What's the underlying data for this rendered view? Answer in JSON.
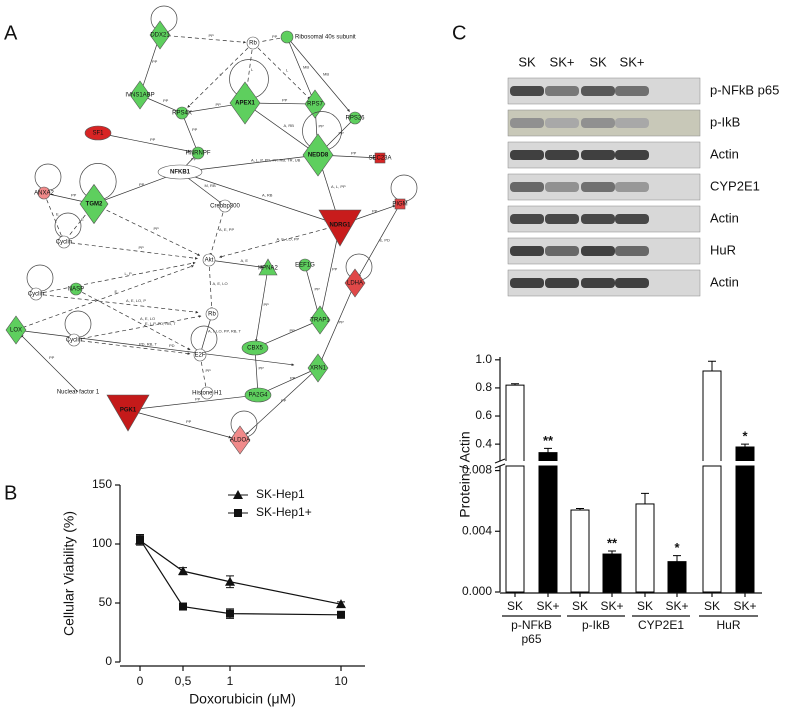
{
  "panels": [
    "A",
    "B",
    "C"
  ],
  "network": {
    "nodes": [
      {
        "label": "DDX21",
        "shape": "diamond",
        "color": "#5ecf5e",
        "self_loop": true
      },
      {
        "label": "Rb",
        "shape": "circle",
        "color": "#ffffff"
      },
      {
        "label": "Ribosomal 40s subunit",
        "shape": "circle",
        "color": "#5ecf5e"
      },
      {
        "label": "IVNS1ABP",
        "shape": "diamond",
        "color": "#5ecf5e"
      },
      {
        "label": "RPS4X",
        "shape": "circle",
        "color": "#5ecf5e"
      },
      {
        "label": "APEX1",
        "shape": "diamond",
        "color": "#5ecf5e",
        "self_loop": true
      },
      {
        "label": "RPS7",
        "shape": "diamond",
        "color": "#5ecf5e"
      },
      {
        "label": "RPS26",
        "shape": "circle",
        "color": "#5ecf5e"
      },
      {
        "label": "SF1",
        "shape": "ellipse",
        "color": "#d82424"
      },
      {
        "label": "HNRNPF",
        "shape": "circle",
        "color": "#5ecf5e"
      },
      {
        "label": "NEDD8",
        "shape": "diamond",
        "color": "#5ecf5e",
        "self_loop": true
      },
      {
        "label": "SEC23A",
        "shape": "square",
        "color": "#d82424"
      },
      {
        "label": "ANXA2",
        "shape": "circle",
        "color": "#f08a8a",
        "self_loop": true
      },
      {
        "label": "TGM2",
        "shape": "diamond",
        "color": "#5ecf5e",
        "self_loop": true
      },
      {
        "label": "NFKB1",
        "shape": "ellipse",
        "color": "#ffffff"
      },
      {
        "label": "Crebbp300",
        "shape": "circle",
        "color": "#ffffff"
      },
      {
        "label": "NDRG1",
        "shape": "tridown",
        "color": "#c81c1c"
      },
      {
        "label": "PIGM",
        "shape": "square",
        "color": "#e04040",
        "self_loop": true
      },
      {
        "label": "Cyclin",
        "shape": "circle",
        "color": "#ffffff",
        "self_loop": true
      },
      {
        "label": "Akt",
        "shape": "circle",
        "color": "#ffffff"
      },
      {
        "label": "KPNA2",
        "shape": "triangle",
        "color": "#5ecf5e"
      },
      {
        "label": "EEF1G",
        "shape": "circle",
        "color": "#5ecf5e"
      },
      {
        "label": "LDHA",
        "shape": "diamond",
        "color": "#e04848",
        "self_loop": true
      },
      {
        "label": "Cyclin",
        "shape": "circle",
        "color": "#ffffff",
        "self_loop": true
      },
      {
        "label": "NASP",
        "shape": "circle",
        "color": "#5ecf5e"
      },
      {
        "label": "Rb",
        "shape": "circle",
        "color": "#ffffff"
      },
      {
        "label": "TRAP1",
        "shape": "diamond",
        "color": "#5ecf5e"
      },
      {
        "label": "LOX",
        "shape": "diamond",
        "color": "#5ecf5e"
      },
      {
        "label": "Cyclin",
        "shape": "circle",
        "color": "#ffffff",
        "self_loop": true
      },
      {
        "label": "E2F",
        "shape": "circle",
        "color": "#ffffff",
        "self_loop": true
      },
      {
        "label": "CBX5",
        "shape": "ellipse",
        "color": "#5ecf5e"
      },
      {
        "label": "XRN1",
        "shape": "diamond",
        "color": "#5ecf5e"
      },
      {
        "label": "Nuclear factor 1",
        "shape": "text",
        "color": "#ffffff"
      },
      {
        "label": "Histone H1",
        "shape": "circle",
        "color": "#ffffff"
      },
      {
        "label": "PA2G4",
        "shape": "ellipse",
        "color": "#5ecf5e"
      },
      {
        "label": "PGK1",
        "shape": "tridown",
        "color": "#c41a1a"
      },
      {
        "label": "ALDOA",
        "shape": "diamond",
        "color": "#f08a8a",
        "self_loop": true
      }
    ],
    "edges": [
      {
        "from": 0,
        "to": 1,
        "label": "PP",
        "dashed": true
      },
      {
        "from": 0,
        "to": 3,
        "label": "PP"
      },
      {
        "from": 2,
        "to": 1,
        "label": "PP",
        "dashed": true
      },
      {
        "from": 2,
        "to": 6,
        "label": "MB"
      },
      {
        "from": 2,
        "to": 7,
        "label": "MB"
      },
      {
        "from": 1,
        "to": 4,
        "label": "L",
        "dashed": true
      },
      {
        "from": 1,
        "to": 5,
        "label": "L",
        "dashed": true
      },
      {
        "from": 1,
        "to": 6,
        "label": "L",
        "dashed": true
      },
      {
        "from": 3,
        "to": 4,
        "label": "PP"
      },
      {
        "from": 4,
        "to": 5,
        "label": "PP"
      },
      {
        "from": 4,
        "to": 9,
        "label": "PP"
      },
      {
        "from": 5,
        "to": 6,
        "label": "PP"
      },
      {
        "from": 5,
        "to": 10,
        "label": "A, RB"
      },
      {
        "from": 6,
        "to": 10,
        "label": "PP"
      },
      {
        "from": 7,
        "to": 10,
        "label": "PP"
      },
      {
        "from": 8,
        "to": 9,
        "label": "PP"
      },
      {
        "from": 10,
        "to": 11,
        "label": "PP"
      },
      {
        "from": 10,
        "to": 16,
        "label": "A, L, PP"
      },
      {
        "from": 14,
        "to": 9,
        "label": "PP"
      },
      {
        "from": 14,
        "to": 10,
        "label": "A, L, P, PD, PP, RB, TR, UB"
      },
      {
        "from": 14,
        "to": 16,
        "label": "A, RB"
      },
      {
        "from": 14,
        "to": 15,
        "label": "M, RB"
      },
      {
        "from": 13,
        "to": 14,
        "label": "PP"
      },
      {
        "from": 12,
        "to": 13,
        "label": "PP"
      },
      {
        "from": 12,
        "to": 18,
        "label": "E",
        "dashed": true
      },
      {
        "from": 13,
        "to": 18,
        "label": "E",
        "dashed": true
      },
      {
        "from": 13,
        "to": 19,
        "label": "PP",
        "dashed": true
      },
      {
        "from": 18,
        "to": 19,
        "label": "PP",
        "dashed": true
      },
      {
        "from": 15,
        "to": 19,
        "label": "A, E, PP",
        "dashed": true
      },
      {
        "from": 16,
        "to": 19,
        "label": "A, E, LO, PP",
        "dashed": true
      },
      {
        "from": 16,
        "to": 17,
        "label": "PP"
      },
      {
        "from": 17,
        "to": 22,
        "label": "E, PD"
      },
      {
        "from": 19,
        "to": 20,
        "label": "A, E"
      },
      {
        "from": 19,
        "to": 25,
        "label": "A, E, LO",
        "dashed": true
      },
      {
        "from": 20,
        "to": 30,
        "label": "PP"
      },
      {
        "from": 21,
        "to": 26,
        "label": "PP"
      },
      {
        "from": 16,
        "to": 26,
        "label": "PP"
      },
      {
        "from": 23,
        "to": 19,
        "label": "L, P",
        "dashed": true
      },
      {
        "from": 23,
        "to": 25,
        "label": "A, E, LO, P",
        "dashed": true
      },
      {
        "from": 27,
        "to": 19,
        "label": "E",
        "dashed": true
      },
      {
        "from": 28,
        "to": 25,
        "label": "E, I, P, PD, RB, T",
        "dashed": true
      },
      {
        "from": 28,
        "to": 29,
        "label": "PD, RB, T",
        "dashed": true
      },
      {
        "from": 24,
        "to": 29,
        "label": "A, E, LO",
        "dashed": true
      },
      {
        "from": 25,
        "to": 29,
        "label": "A, I, LO, PP, RB, T"
      },
      {
        "from": 26,
        "to": 30,
        "label": "PP"
      },
      {
        "from": 29,
        "to": 33,
        "label": "PP",
        "dashed": true
      },
      {
        "from": 30,
        "to": 34,
        "label": "PP"
      },
      {
        "from": 31,
        "to": 36,
        "label": "PP"
      },
      {
        "from": 31,
        "to": 34,
        "label": "PP"
      },
      {
        "from": 35,
        "to": 34,
        "label": "PP"
      },
      {
        "from": 35,
        "to": 36,
        "label": "PP"
      },
      {
        "from": 27,
        "to": 31,
        "label": "PD"
      },
      {
        "from": 32,
        "to": 27,
        "label": "PP"
      },
      {
        "from": 22,
        "to": 31,
        "label": "PP"
      }
    ]
  },
  "blot": {
    "lanes": [
      "SK",
      "SK+",
      "SK",
      "SK+"
    ],
    "rows": [
      "p-NFkB p65",
      "p-IkB",
      "Actin",
      "CYP2E1",
      "Actin",
      "HuR",
      "Actin"
    ]
  },
  "chart_data": [
    {
      "type": "line",
      "categories": [
        "0",
        "0,5",
        "1",
        "10"
      ],
      "xlabel": "Doxorubicin (μM)",
      "ylabel": "Cellular Viability  (%)",
      "ylim": [
        0,
        150
      ],
      "yticks": [
        0,
        50,
        100,
        150
      ],
      "legend": "top-right",
      "series": [
        {
          "name": "SK-Hep1",
          "marker": "triangle",
          "color": "#111111",
          "values": [
            103,
            77,
            68,
            49
          ],
          "errors": [
            4,
            3,
            5,
            2
          ]
        },
        {
          "name": "SK-Hep1+",
          "marker": "square",
          "color": "#111111",
          "values": [
            104,
            47,
            41,
            40
          ],
          "errors": [
            4,
            2,
            4,
            2
          ]
        }
      ]
    },
    {
      "type": "broken-bar",
      "categories": [
        "SK",
        "SK+",
        "SK",
        "SK+",
        "SK",
        "SK+",
        "SK",
        "SK+"
      ],
      "groups": [
        [
          "p-NFkB",
          "p65"
        ],
        [
          "p-IkB"
        ],
        [
          "CYP2E1"
        ],
        [
          "HuR"
        ]
      ],
      "ylabel": "Protein / Actin",
      "values": [
        0.82,
        0.34,
        0.0054,
        0.0025,
        0.0058,
        0.002,
        0.92,
        0.38
      ],
      "errors": [
        0.01,
        0.03,
        0.0001,
        0.0002,
        0.0007,
        0.0004,
        0.07,
        0.02
      ],
      "significance": [
        null,
        "**",
        null,
        "**",
        null,
        "*",
        null,
        "*"
      ],
      "colors": [
        "#ffffff",
        "#000000",
        "#ffffff",
        "#000000",
        "#ffffff",
        "#000000",
        "#ffffff",
        "#000000"
      ],
      "ylim": [
        0,
        0.0083
      ],
      "yticks": [
        {
          "value": 0,
          "label": "0.000"
        },
        {
          "value": 0.004,
          "label": "0.004"
        },
        {
          "value": 0.008,
          "label": "0.008"
        }
      ],
      "y2lim": [
        0.28,
        1.02
      ],
      "y2ticks": [
        0.4,
        0.6,
        0.8,
        {
          "value": 1,
          "label": "1.0"
        }
      ]
    }
  ]
}
